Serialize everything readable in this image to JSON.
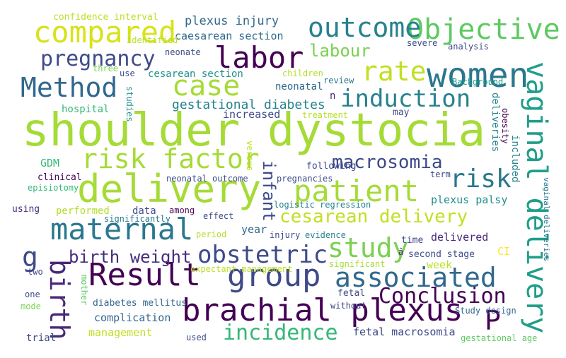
{
  "words": [
    {
      "text": "shoulder dystocia",
      "color": "#a5db36"
    },
    {
      "text": "delivery",
      "color": "#a5db36"
    },
    {
      "text": "brachial plexus",
      "color": "#440154"
    },
    {
      "text": "Result",
      "color": "#440154"
    },
    {
      "text": "maternal",
      "color": "#2a788e"
    },
    {
      "text": "group",
      "color": "#3e4a89"
    },
    {
      "text": "women",
      "color": "#2a788e"
    },
    {
      "text": "vaginal delivery",
      "color": "#1f9e89"
    },
    {
      "text": "patient",
      "color": "#a5db36"
    },
    {
      "text": "risk factor",
      "color": "#a5db36"
    },
    {
      "text": "compared",
      "color": "#d8e219"
    },
    {
      "text": "labor",
      "color": "#440154"
    },
    {
      "text": "Method",
      "color": "#31688e"
    },
    {
      "text": "case",
      "color": "#a5db36"
    },
    {
      "text": "Objective",
      "color": "#5ec962"
    },
    {
      "text": "outcome",
      "color": "#26828e"
    },
    {
      "text": "associated",
      "color": "#31688e"
    },
    {
      "text": "obstetric",
      "color": "#3e4a89"
    },
    {
      "text": "study",
      "color": "#7ad151"
    },
    {
      "text": "induction",
      "color": "#26828e"
    },
    {
      "text": "risk",
      "color": "#2a788e"
    },
    {
      "text": "rate",
      "color": "#c2df23"
    },
    {
      "text": "birth",
      "color": "#482878"
    },
    {
      "text": "incidence",
      "color": "#35b779"
    },
    {
      "text": "Conclusion",
      "color": "#440154"
    },
    {
      "text": "cesarean delivery",
      "color": "#c2df23"
    },
    {
      "text": "pregnancy",
      "color": "#3e4a89"
    },
    {
      "text": "macrosomia",
      "color": "#3e4a89"
    },
    {
      "text": "labour",
      "color": "#7ad151"
    },
    {
      "text": "g",
      "color": "#3e4a89"
    },
    {
      "text": "P",
      "color": "#440154"
    },
    {
      "text": "infant",
      "color": "#3e4a89"
    },
    {
      "text": "birth weight",
      "color": "#472d7b"
    },
    {
      "text": "gestational diabetes",
      "color": "#26828e"
    },
    {
      "text": "complication",
      "color": "#31688e"
    },
    {
      "text": "confidence interval",
      "color": "#bddf26"
    },
    {
      "text": "plexus injury",
      "color": "#31688e"
    },
    {
      "text": "caesarean section",
      "color": "#31688e"
    },
    {
      "text": "cesarean section",
      "color": "#21918c"
    },
    {
      "text": "increased",
      "color": "#3e4a89"
    },
    {
      "text": "management",
      "color": "#c2df23"
    },
    {
      "text": "fetal macrosomia",
      "color": "#3e4a89"
    },
    {
      "text": "deliveries",
      "color": "#26828e"
    },
    {
      "text": "plexus palsy",
      "color": "#21918c"
    },
    {
      "text": "hospital",
      "color": "#35b779"
    },
    {
      "text": "logistic regression",
      "color": "#26828e"
    },
    {
      "text": "performed",
      "color": "#b5de2b"
    },
    {
      "text": "data",
      "color": "#3e4a89"
    },
    {
      "text": "year",
      "color": "#31688e"
    },
    {
      "text": "week",
      "color": "#bddf26"
    },
    {
      "text": "delivered",
      "color": "#482878"
    },
    {
      "text": "second stage",
      "color": "#3e4a89"
    },
    {
      "text": "expectant management",
      "color": "#bddf26"
    },
    {
      "text": "diabetes mellitus",
      "color": "#31688e"
    },
    {
      "text": "Study design",
      "color": "#31688e"
    },
    {
      "text": "gestational age",
      "color": "#5ec962"
    },
    {
      "text": "vaginal deliveries",
      "color": "#2a788e"
    },
    {
      "text": "neonatal outcome",
      "color": "#3e4a89"
    },
    {
      "text": "neonatal",
      "color": "#31688e"
    },
    {
      "text": "GDM",
      "color": "#35b779"
    },
    {
      "text": "clinical",
      "color": "#440154"
    },
    {
      "text": "episiotomy",
      "color": "#35b779"
    },
    {
      "text": "using",
      "color": "#472d7b"
    },
    {
      "text": "among",
      "color": "#440154"
    },
    {
      "text": "significantly",
      "color": "#2a788e"
    },
    {
      "text": "effect",
      "color": "#3e4a89"
    },
    {
      "text": "period",
      "color": "#b5de2b"
    },
    {
      "text": "injury",
      "color": "#3e4a89"
    },
    {
      "text": "evidence",
      "color": "#26828e"
    },
    {
      "text": "time",
      "color": "#3e4a89"
    },
    {
      "text": "â",
      "color": "#472d7b"
    },
    {
      "text": "CI",
      "color": "#fde725"
    },
    {
      "text": "significant",
      "color": "#a5db36"
    },
    {
      "text": "fetal",
      "color": "#3e4a89"
    },
    {
      "text": "without",
      "color": "#3e4a89"
    },
    {
      "text": "two",
      "color": "#3e4a89"
    },
    {
      "text": "one",
      "color": "#3e4a89"
    },
    {
      "text": "mode",
      "color": "#7ad151"
    },
    {
      "text": "mother",
      "color": "#5ec962"
    },
    {
      "text": "trial",
      "color": "#3e4a89"
    },
    {
      "text": "used",
      "color": "#3e4a89"
    },
    {
      "text": "identified",
      "color": "#b5de2b"
    },
    {
      "text": "neonate",
      "color": "#3e4a89"
    },
    {
      "text": "three",
      "color": "#7ad151"
    },
    {
      "text": "use",
      "color": "#3e4a89"
    },
    {
      "text": "children",
      "color": "#b5de2b"
    },
    {
      "text": "review",
      "color": "#2a788e"
    },
    {
      "text": "n",
      "color": "#482878"
    },
    {
      "text": "treatment",
      "color": "#b5de2b"
    },
    {
      "text": "may",
      "color": "#3e4a89"
    },
    {
      "text": "severe",
      "color": "#3e4a89"
    },
    {
      "text": "analysis",
      "color": "#3e4a89"
    },
    {
      "text": "Background",
      "color": "#1f9e89"
    },
    {
      "text": "studies",
      "color": "#21918c"
    },
    {
      "text": "versus",
      "color": "#c2df23"
    },
    {
      "text": "following",
      "color": "#3e4a89"
    },
    {
      "text": "pregnancies",
      "color": "#3e4a89"
    },
    {
      "text": "term",
      "color": "#3e4a89"
    },
    {
      "text": "obesity",
      "color": "#440154"
    },
    {
      "text": "included",
      "color": "#26828e"
    }
  ]
}
